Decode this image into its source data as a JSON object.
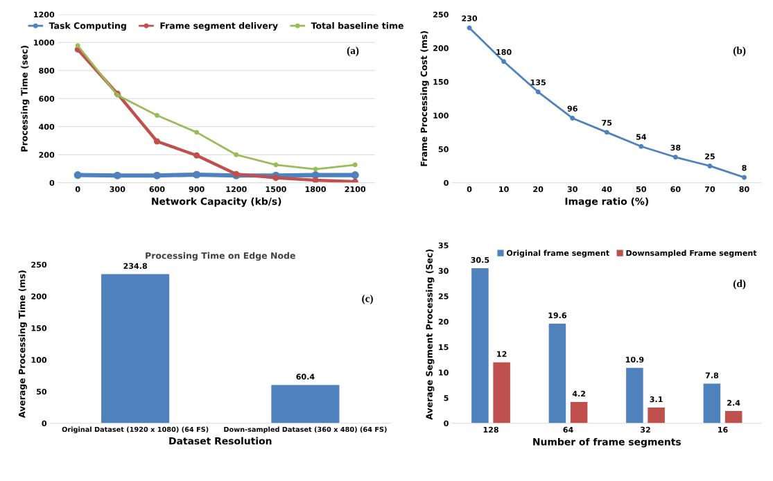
{
  "chart_data": [
    {
      "type": "line",
      "categories": [
        "0",
        "300",
        "600",
        "900",
        "1200",
        "1500",
        "1800",
        "2100"
      ],
      "xlabel": "Network Capacity (kb/s)",
      "ylabel": "Processing Time (sec)",
      "ylim": [
        0,
        1200
      ],
      "yticks": [
        0,
        200,
        400,
        600,
        800,
        1000,
        1200
      ],
      "grid": "y",
      "legend": "top",
      "marker": "circle",
      "annotations": [
        "(a)"
      ],
      "series": [
        {
          "name": "Task Computing",
          "color": "#4f81bd",
          "values": [
            55,
            52,
            52,
            58,
            52,
            52,
            55,
            55
          ]
        },
        {
          "name": "Frame segment delivery",
          "color": "#c0504d",
          "values": [
            950,
            635,
            295,
            195,
            62,
            35,
            18,
            8
          ]
        },
        {
          "name": "Total baseline time",
          "color": "#9bbb59",
          "values": [
            978,
            625,
            480,
            360,
            200,
            128,
            97,
            128
          ]
        }
      ]
    },
    {
      "type": "line",
      "categories": [
        "0",
        "10",
        "20",
        "30",
        "40",
        "50",
        "60",
        "70",
        "80"
      ],
      "xlabel": "Image ratio (%)",
      "ylabel": "Frame Processing Cost (ms)",
      "ylim": [
        0,
        250
      ],
      "yticks": [
        0,
        50,
        100,
        150,
        200,
        250
      ],
      "marker": "circle",
      "data_labels": true,
      "annotations": [
        "(b)"
      ],
      "series": [
        {
          "color": "#4f81bd",
          "values": [
            230,
            180,
            135,
            96,
            75,
            54,
            38,
            25,
            8
          ]
        }
      ]
    },
    {
      "type": "bar",
      "title": "Processing Time on Edge Node",
      "categories": [
        "Original Dataset (1920 x 1080) (64 FS)",
        "Down-sampled Dataset (360 x 480) (64 FS)"
      ],
      "xlabel": "Dataset Resolution",
      "ylabel": "Average Processing Time (ms)",
      "ylim": [
        0,
        250
      ],
      "yticks": [
        0,
        50,
        100,
        150,
        200,
        250
      ],
      "data_labels": true,
      "annotations": [
        "(c)"
      ],
      "series": [
        {
          "color": "#4f81bd",
          "values": [
            234.8,
            60.4
          ]
        }
      ]
    },
    {
      "type": "bar",
      "categories": [
        "128",
        "64",
        "32",
        "16"
      ],
      "xlabel": "Number of frame segments",
      "ylabel": "Average Segment Processing (Sec)",
      "ylim": [
        0,
        35
      ],
      "yticks": [
        0,
        5,
        10,
        15,
        20,
        25,
        30,
        35
      ],
      "data_labels": true,
      "legend": "top",
      "annotations": [
        "(d)"
      ],
      "series": [
        {
          "name": "Original frame segment",
          "color": "#4f81bd",
          "values": [
            30.5,
            19.6,
            10.9,
            7.8
          ]
        },
        {
          "name": "Downsampled Frame segment",
          "color": "#c0504d",
          "values": [
            12,
            4.2,
            3.1,
            2.4
          ]
        }
      ]
    }
  ]
}
